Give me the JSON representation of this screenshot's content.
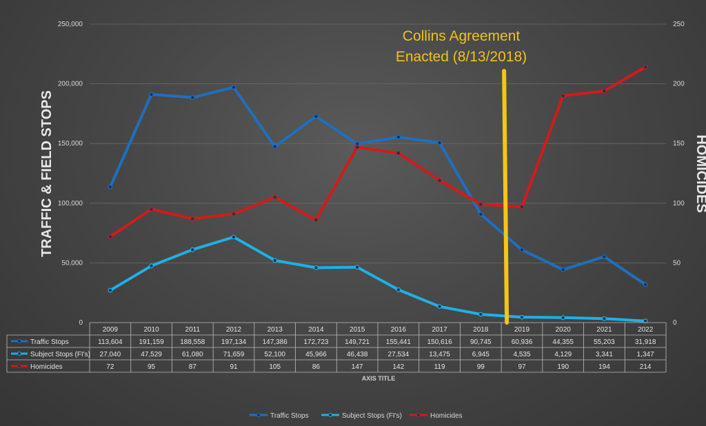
{
  "chart_data": {
    "type": "line",
    "categories": [
      "2009",
      "2010",
      "2011",
      "2012",
      "2013",
      "2014",
      "2015",
      "2016",
      "2017",
      "2018",
      "2019",
      "2020",
      "2021",
      "2022"
    ],
    "series": [
      {
        "name": "Traffic Stops",
        "axis": "left",
        "color": "#1f6fbf",
        "values": [
          113604,
          191159,
          188558,
          197134,
          147386,
          172723,
          149721,
          155441,
          150616,
          90745,
          60936,
          44355,
          55203,
          31918
        ],
        "labels": [
          "113,604",
          "191,159",
          "188,558",
          "197,134",
          "147,386",
          "172,723",
          "149,721",
          "155,441",
          "150,616",
          "90,745",
          "60,936",
          "44,355",
          "55,203",
          "31,918"
        ]
      },
      {
        "name": "Subject Stops (FI's)",
        "axis": "left",
        "color": "#1fb0e6",
        "values": [
          27040,
          47529,
          61080,
          71659,
          52100,
          45966,
          46438,
          27534,
          13475,
          6945,
          4535,
          4129,
          3341,
          1347
        ],
        "labels": [
          "27,040",
          "47,529",
          "61,080",
          "71,659",
          "52,100",
          "45,966",
          "46,438",
          "27,534",
          "13,475",
          "6,945",
          "4,535",
          "4,129",
          "3,341",
          "1,347"
        ]
      },
      {
        "name": "Homicides",
        "axis": "right",
        "color": "#d41a1a",
        "values": [
          72,
          95,
          87,
          91,
          105,
          86,
          147,
          142,
          119,
          99,
          97,
          190,
          194,
          214
        ],
        "labels": [
          "72",
          "95",
          "87",
          "91",
          "105",
          "86",
          "147",
          "142",
          "119",
          "99",
          "97",
          "190",
          "194",
          "214"
        ]
      }
    ],
    "ylabel": "TRAFFIC & FIELD STOPS",
    "y2label": "HOMICIDES",
    "xlabel": "AXIS TITLE",
    "ylim": [
      0,
      250000
    ],
    "y2lim": [
      0,
      250
    ],
    "yticks": [
      "0",
      "50,000",
      "100,000",
      "150,000",
      "200,000",
      "250,000"
    ],
    "y2ticks": [
      "0",
      "50",
      "100",
      "150",
      "200",
      "250"
    ],
    "annotation": {
      "line1": "Collins Agreement",
      "line2": "Enacted (8/13/2018)",
      "x": 2018.6,
      "color": "#f5c518"
    },
    "grid": true,
    "legend": "bottom",
    "data_table": true
  }
}
